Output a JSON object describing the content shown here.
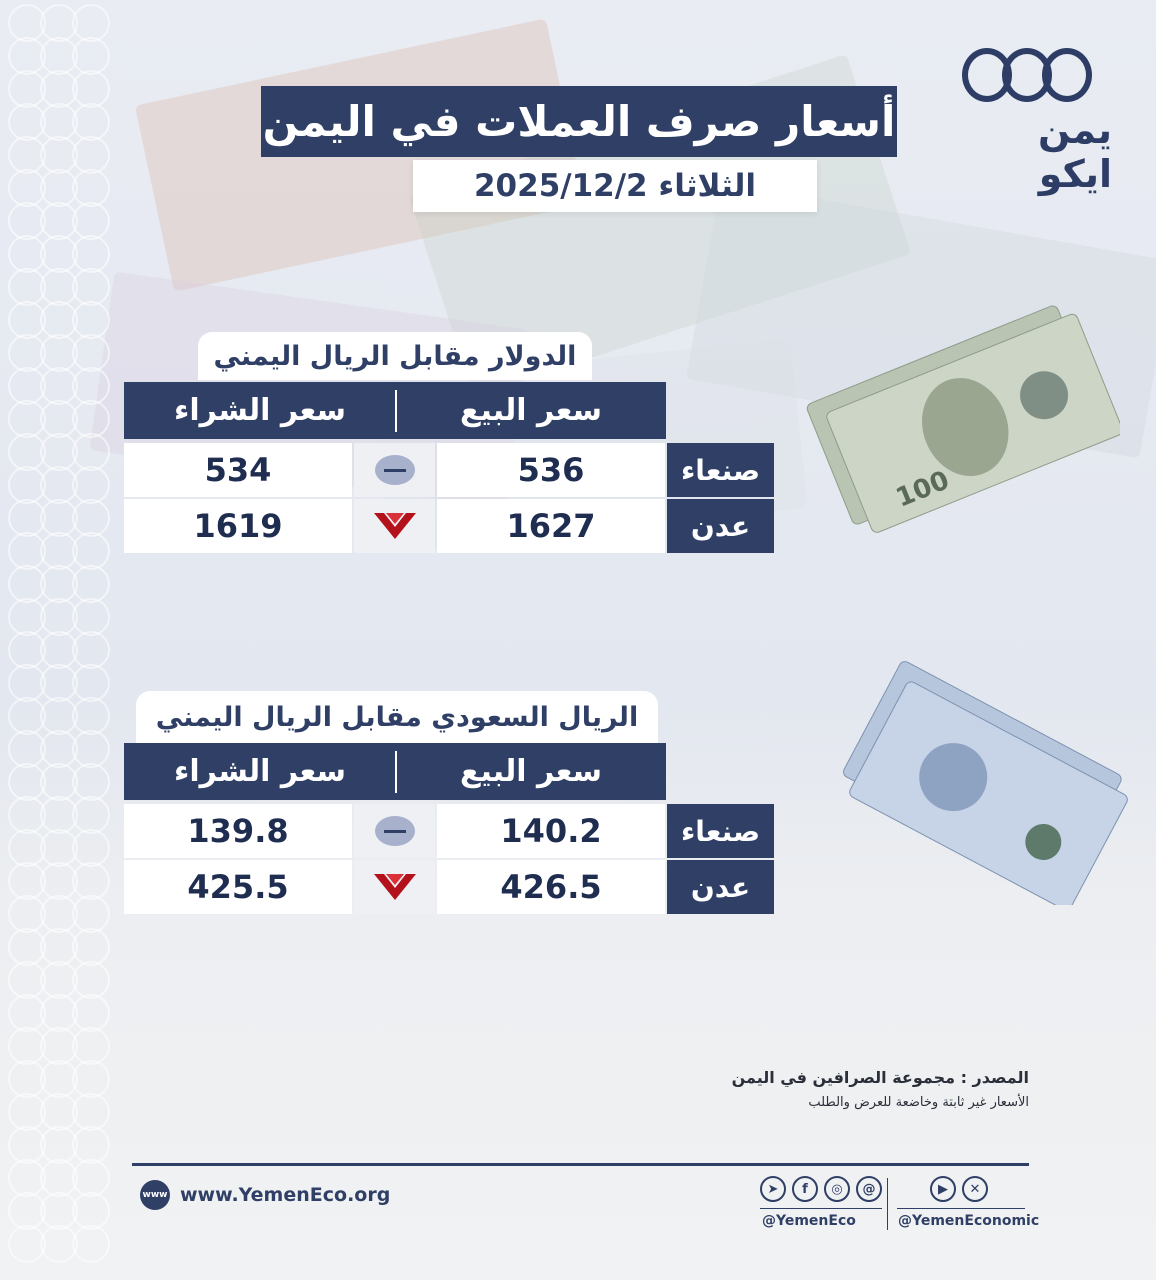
{
  "brand": {
    "logo_text": "يمن ايكو"
  },
  "title": "أسعار صرف العملات في اليمن",
  "date": "الثلاثاء 2025/12/2",
  "colors": {
    "primary": "#2f3f66",
    "down": "#b3121c",
    "neutral": "#a8b1cc"
  },
  "tables": [
    {
      "title": "الدولار مقابل الريال اليمني",
      "sell_header": "سعر البيع",
      "buy_header": "سعر الشراء",
      "rows": [
        {
          "city": "صنعاء",
          "sell": "536",
          "buy": "534",
          "trend": "unchanged"
        },
        {
          "city": "عدن",
          "sell": "1627",
          "buy": "1619",
          "trend": "down"
        }
      ]
    },
    {
      "title": "الريال السعودي مقابل الريال اليمني",
      "sell_header": "سعر البيع",
      "buy_header": "سعر الشراء",
      "rows": [
        {
          "city": "صنعاء",
          "sell": "140.2",
          "buy": "139.8",
          "trend": "unchanged"
        },
        {
          "city": "عدن",
          "sell": "426.5",
          "buy": "425.5",
          "trend": "down"
        }
      ]
    }
  ],
  "source": {
    "line1": "المصدر : مجموعة الصرافين في اليمن",
    "line2": "الأسعار غير ثابتة وخاضعة للعرض والطلب"
  },
  "footer": {
    "website": "www.YemenEco.org",
    "web_icon_text": "www",
    "handle_1": "@YemenEco",
    "handle_2": "@YemenEconomic",
    "icons_1": [
      "telegram-icon",
      "facebook-icon",
      "instagram-icon",
      "threads-icon"
    ],
    "icons_2": [
      "youtube-icon",
      "x-icon"
    ]
  }
}
